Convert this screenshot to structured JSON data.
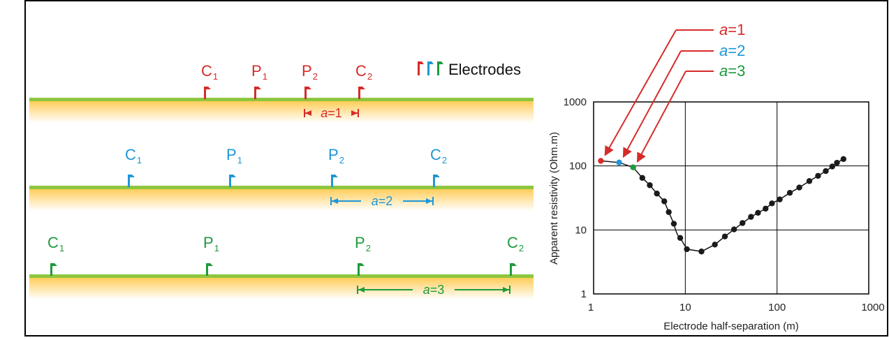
{
  "colors": {
    "a1": "#d62b2b",
    "a2": "#1f96d6",
    "a3": "#1e9a3c",
    "ground_top": "#8dc63f",
    "ground_fill": "#ffd76a",
    "frame": "#000000",
    "curve": "#111111"
  },
  "legend": {
    "label": "Electrodes"
  },
  "arrays": [
    {
      "key": "a1",
      "spacing_prefix": "a",
      "spacing_value": "=1",
      "electrodes": [
        {
          "main": "C",
          "sub": "1"
        },
        {
          "main": "P",
          "sub": "1"
        },
        {
          "main": "P",
          "sub": "2"
        },
        {
          "main": "C",
          "sub": "2"
        }
      ]
    },
    {
      "key": "a2",
      "spacing_prefix": "a",
      "spacing_value": "=2",
      "electrodes": [
        {
          "main": "C",
          "sub": "1"
        },
        {
          "main": "P",
          "sub": "1"
        },
        {
          "main": "P",
          "sub": "2"
        },
        {
          "main": "C",
          "sub": "2"
        }
      ]
    },
    {
      "key": "a3",
      "spacing_prefix": "a",
      "spacing_value": "=3",
      "electrodes": [
        {
          "main": "C",
          "sub": "1"
        },
        {
          "main": "P",
          "sub": "1"
        },
        {
          "main": "P",
          "sub": "2"
        },
        {
          "main": "C",
          "sub": "2"
        }
      ]
    }
  ],
  "callouts": [
    {
      "key": "a1",
      "prefix": "a",
      "value": "=1"
    },
    {
      "key": "a2",
      "prefix": "a",
      "value": "=2"
    },
    {
      "key": "a3",
      "prefix": "a",
      "value": "=3"
    }
  ],
  "chart_data": {
    "type": "scatter",
    "x_scale": "log",
    "y_scale": "log",
    "xlim": [
      1,
      1000
    ],
    "ylim": [
      1,
      1000
    ],
    "x_ticks": [
      "1",
      "10",
      "100",
      "1000"
    ],
    "y_ticks": [
      "1",
      "10",
      "100",
      "1000"
    ],
    "xlabel": "Electrode half-separation (m)",
    "ylabel": "Apparent resistivity (Ohm.m)",
    "grid": true,
    "highlighted_points": [
      {
        "key": "a1",
        "x": 1.2,
        "y": 120
      },
      {
        "key": "a2",
        "x": 1.9,
        "y": 113
      },
      {
        "key": "a3",
        "x": 2.7,
        "y": 95
      }
    ],
    "points": [
      {
        "x": 3.4,
        "y": 65
      },
      {
        "x": 4.1,
        "y": 50
      },
      {
        "x": 4.9,
        "y": 37
      },
      {
        "x": 5.9,
        "y": 28
      },
      {
        "x": 6.6,
        "y": 19
      },
      {
        "x": 7.5,
        "y": 12.5
      },
      {
        "x": 8.8,
        "y": 7.5
      },
      {
        "x": 10.4,
        "y": 5
      },
      {
        "x": 15,
        "y": 4.6
      },
      {
        "x": 21,
        "y": 5.9
      },
      {
        "x": 27,
        "y": 7.9
      },
      {
        "x": 34,
        "y": 10.2
      },
      {
        "x": 42,
        "y": 12.8
      },
      {
        "x": 52,
        "y": 16
      },
      {
        "x": 62,
        "y": 18.5
      },
      {
        "x": 75,
        "y": 21.5
      },
      {
        "x": 88,
        "y": 26
      },
      {
        "x": 107,
        "y": 30
      },
      {
        "x": 138,
        "y": 38
      },
      {
        "x": 175,
        "y": 46
      },
      {
        "x": 225,
        "y": 58
      },
      {
        "x": 280,
        "y": 70
      },
      {
        "x": 340,
        "y": 83
      },
      {
        "x": 400,
        "y": 98
      },
      {
        "x": 450,
        "y": 112
      },
      {
        "x": 530,
        "y": 128
      }
    ]
  }
}
